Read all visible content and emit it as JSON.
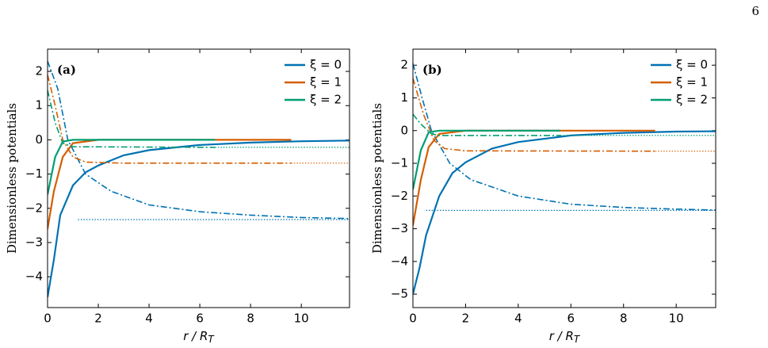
{
  "page_number": "6",
  "chart_data": [
    {
      "type": "line",
      "panel_label": "(a)",
      "ylabel": "Dimensionless potentials",
      "xlabel": "r / R",
      "xlabel_sub": "T",
      "xlim": [
        0,
        11.9
      ],
      "ylim": [
        -4.9,
        2.65
      ],
      "xticks": [
        0,
        2,
        4,
        6,
        8,
        10
      ],
      "yticks": [
        {
          "value": -4,
          "label": "−4"
        },
        {
          "value": -3,
          "label": "−3"
        },
        {
          "value": -2,
          "label": "−2"
        },
        {
          "value": -1,
          "label": "−1"
        },
        0,
        1,
        2
      ],
      "series": [
        {
          "name": "ξ = 0",
          "color": "#0072b2",
          "x": [
            0,
            0.25,
            0.5,
            1,
            1.5,
            2,
            3,
            4,
            6,
            8,
            10,
            11.9
          ],
          "values": [
            -4.6,
            -3.5,
            -2.2,
            -1.33,
            -0.95,
            -0.75,
            -0.45,
            -0.3,
            -0.15,
            -0.08,
            -0.04,
            -0.02
          ],
          "dashdot": {
            "x": [
              0,
              0.4,
              0.8,
              1.5,
              2.5,
              4,
              6,
              8,
              10,
              11.9
            ],
            "values": [
              2.3,
              1.5,
              0,
              -1,
              -1.5,
              -1.9,
              -2.1,
              -2.2,
              -2.27,
              -2.3
            ]
          },
          "dotted": {
            "x": [
              1.2,
              11.9
            ],
            "values": [
              -2.33,
              -2.33
            ]
          }
        },
        {
          "name": "ξ = 1",
          "color": "#d55e00",
          "x": [
            0,
            0.25,
            0.6,
            1,
            2,
            9.6
          ],
          "values": [
            -2.6,
            -1.5,
            -0.5,
            -0.1,
            0,
            0
          ],
          "dashdot": {
            "x": [
              0,
              0.3,
              0.6,
              1,
              1.5,
              3,
              9.6
            ],
            "values": [
              1.9,
              1,
              0,
              -0.5,
              -0.65,
              -0.68,
              -0.68
            ]
          },
          "dotted": {
            "x": [
              9.6,
              11.9
            ],
            "values": [
              -0.68,
              -0.68
            ]
          }
        },
        {
          "name": "ξ = 2",
          "color": "#009e73",
          "x": [
            0,
            0.3,
            0.6,
            1,
            6.6
          ],
          "values": [
            -1.6,
            -0.5,
            -0.05,
            0,
            0
          ],
          "dashdot": {
            "x": [
              0,
              0.3,
              0.6,
              1,
              6.6
            ],
            "values": [
              1.45,
              0.5,
              -0.1,
              -0.2,
              -0.22
            ]
          },
          "dotted": {
            "x": [
              6.6,
              11.9
            ],
            "values": [
              -0.22,
              -0.22
            ]
          }
        }
      ]
    },
    {
      "type": "line",
      "panel_label": "(b)",
      "ylabel": "Dimensionless potentials",
      "xlabel": "r / R",
      "xlabel_sub": "T",
      "xlim": [
        0,
        11.5
      ],
      "ylim": [
        -5.41,
        2.49
      ],
      "xticks": [
        0,
        2,
        4,
        6,
        8,
        10
      ],
      "yticks": [
        {
          "value": -5,
          "label": "−5"
        },
        {
          "value": -4,
          "label": "−4"
        },
        {
          "value": -3,
          "label": "−3"
        },
        {
          "value": -2,
          "label": "−2"
        },
        {
          "value": -1,
          "label": "−1"
        },
        0,
        1,
        2
      ],
      "series": [
        {
          "name": "ξ = 0",
          "color": "#0072b2",
          "x": [
            0,
            0.25,
            0.5,
            1,
            1.5,
            2,
            3,
            4,
            6,
            8,
            10,
            11.5
          ],
          "values": [
            -5,
            -4.2,
            -3.2,
            -2,
            -1.3,
            -0.97,
            -0.55,
            -0.35,
            -0.15,
            -0.07,
            -0.03,
            -0.02
          ],
          "dashdot": {
            "x": [
              0,
              0.35,
              0.7,
              1.4,
              2.2,
              4,
              6,
              8,
              10,
              11.5
            ],
            "values": [
              2.05,
              1,
              0,
              -1,
              -1.5,
              -2,
              -2.25,
              -2.35,
              -2.4,
              -2.43
            ]
          },
          "dotted": {
            "x": [
              0.5,
              11.5
            ],
            "values": [
              -2.44,
              -2.44
            ]
          }
        },
        {
          "name": "ξ = 1",
          "color": "#d55e00",
          "x": [
            0,
            0.3,
            0.6,
            1,
            2,
            9.2
          ],
          "values": [
            -2.9,
            -1.5,
            -0.5,
            -0.1,
            0,
            0
          ],
          "dashdot": {
            "x": [
              0,
              0.4,
              0.8,
              1.2,
              2,
              9.2
            ],
            "values": [
              1.6,
              0.5,
              -0.3,
              -0.55,
              -0.62,
              -0.63
            ]
          },
          "dotted": {
            "x": [
              9.2,
              11.5
            ],
            "values": [
              -0.63,
              -0.63
            ]
          }
        },
        {
          "name": "ξ = 2",
          "color": "#009e73",
          "x": [
            0,
            0.3,
            0.6,
            1,
            5.6
          ],
          "values": [
            -1.8,
            -0.6,
            -0.05,
            0,
            0
          ],
          "dashdot": {
            "x": [
              0,
              0.3,
              0.7,
              1,
              5.6
            ],
            "values": [
              0.5,
              0.2,
              -0.1,
              -0.15,
              -0.15
            ]
          },
          "dotted": {
            "x": [
              5.6,
              11.5
            ],
            "values": [
              -0.15,
              -0.15
            ]
          }
        }
      ]
    }
  ]
}
